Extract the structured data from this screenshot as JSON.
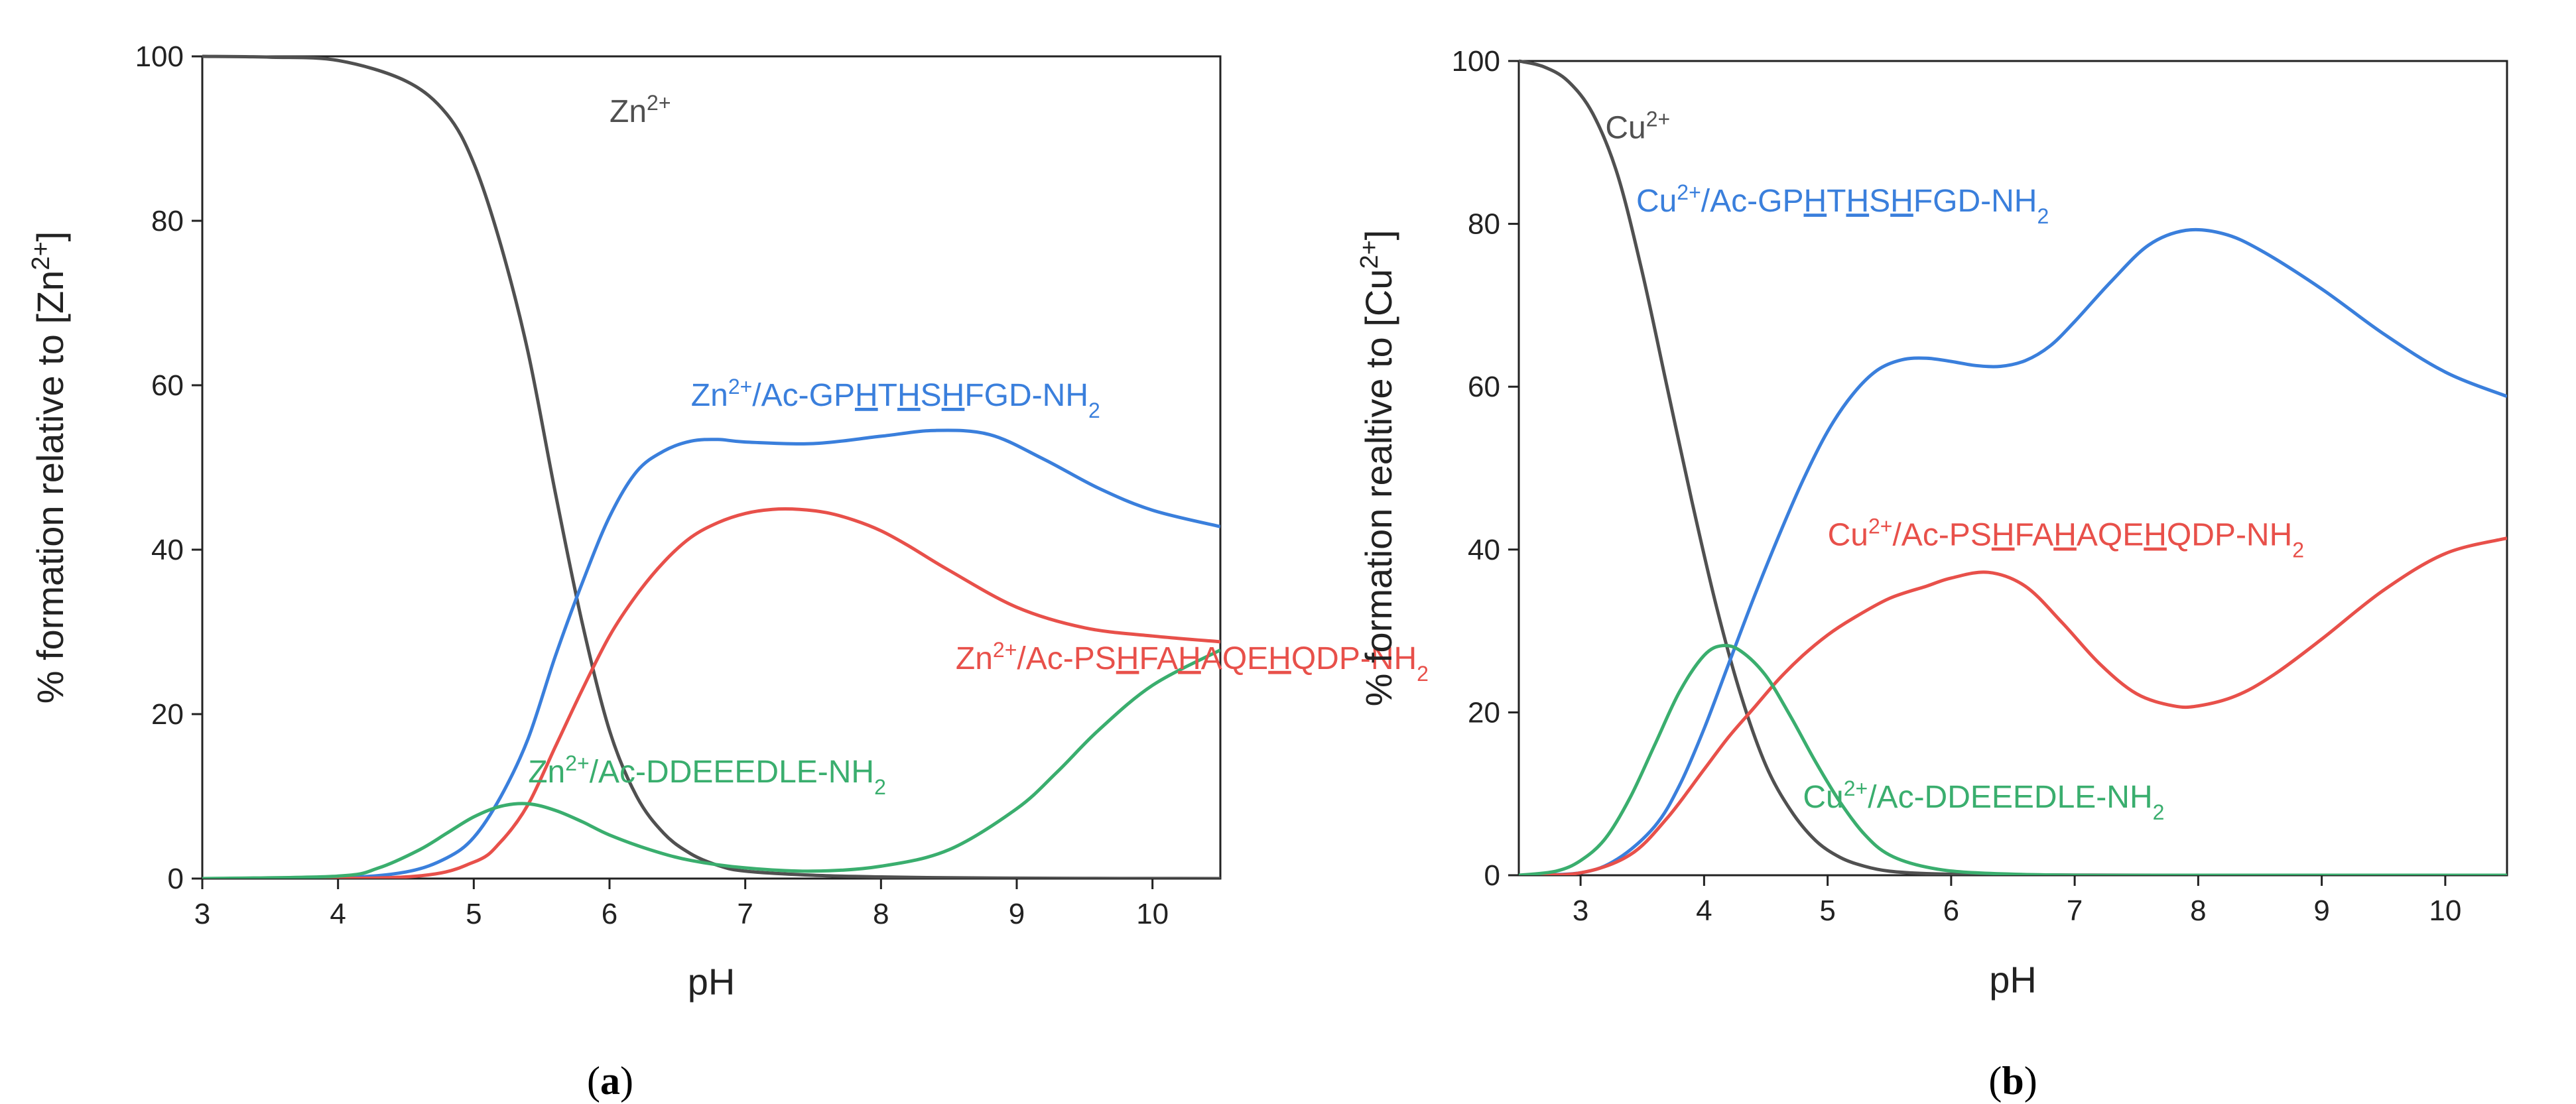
{
  "chart_data": [
    {
      "panel": "a",
      "panel_label": "(a)",
      "type": "line",
      "xlabel": "pH",
      "ylabel_prefix": "% formation relative to [Zn",
      "ylabel_sup": "2+",
      "ylabel_suffix": "]",
      "xlim": [
        3,
        10.5
      ],
      "ylim": [
        0,
        100
      ],
      "xticks": [
        3,
        4,
        5,
        6,
        7,
        8,
        9,
        10
      ],
      "yticks": [
        0,
        20,
        40,
        60,
        80,
        100
      ],
      "series": [
        {
          "name": "Zn2+",
          "color": "#505050",
          "label_parts": [
            {
              "t": "Zn"
            },
            {
              "t": "2+",
              "sup": true
            }
          ],
          "label_anchor": [
            6.0,
            92
          ],
          "x": [
            3,
            3.5,
            4,
            4.5,
            4.8,
            5,
            5.2,
            5.4,
            5.6,
            5.8,
            6,
            6.2,
            6.4,
            6.6,
            6.8,
            7,
            7.5,
            8,
            8.5,
            9,
            9.5,
            10,
            10.5
          ],
          "y": [
            100,
            99.9,
            99.5,
            97,
            93,
            87,
            77,
            64,
            47,
            31,
            18,
            10,
            5.5,
            3,
            1.6,
            0.9,
            0.4,
            0.2,
            0.1,
            0.05,
            0.02,
            0.01,
            0
          ]
        },
        {
          "name": "Zn2+/Ac-GPHTHSHFGD-NH2",
          "color": "#3a7fdc",
          "label_parts": [
            {
              "t": "Zn"
            },
            {
              "t": "2+",
              "sup": true
            },
            {
              "t": "/Ac-GP"
            },
            {
              "t": "H",
              "u": true
            },
            {
              "t": "T"
            },
            {
              "t": "H",
              "u": true
            },
            {
              "t": "S"
            },
            {
              "t": "H",
              "u": true
            },
            {
              "t": "FGD-NH"
            },
            {
              "t": "2",
              "sub": true
            }
          ],
          "label_anchor": [
            6.6,
            57.5
          ],
          "x": [
            3,
            4,
            4.5,
            4.8,
            5,
            5.2,
            5.4,
            5.6,
            5.8,
            6,
            6.2,
            6.4,
            6.6,
            6.8,
            7,
            7.5,
            8,
            8.4,
            8.8,
            9.2,
            9.6,
            10,
            10.5
          ],
          "y": [
            0,
            0.1,
            0.8,
            2.5,
            5,
            10,
            17,
            27,
            36,
            44,
            49.5,
            52,
            53.2,
            53.4,
            53.1,
            52.9,
            53.8,
            54.5,
            54,
            51,
            47.5,
            44.8,
            42.8
          ]
        },
        {
          "name": "Zn2+/Ac-PSHFAHAQEHQDP-NH2",
          "color": "#e8504a",
          "label_parts": [
            {
              "t": "Zn"
            },
            {
              "t": "2+",
              "sup": true
            },
            {
              "t": "/Ac-PS"
            },
            {
              "t": "H",
              "u": true
            },
            {
              "t": "FA"
            },
            {
              "t": "H",
              "u": true
            },
            {
              "t": "AQE"
            },
            {
              "t": "H",
              "u": true
            },
            {
              "t": "QDP-NH"
            },
            {
              "t": "2",
              "sub": true
            }
          ],
          "label_anchor": [
            8.55,
            25.5
          ],
          "x": [
            3,
            4.5,
            5,
            5.2,
            5.4,
            5.6,
            5.8,
            6,
            6.2,
            6.4,
            6.6,
            6.8,
            7,
            7.2,
            7.4,
            7.6,
            7.8,
            8,
            8.2,
            8.5,
            9,
            9.5,
            10,
            10.5
          ],
          "y": [
            0,
            0.2,
            2,
            4.5,
            9,
            16,
            23,
            29.5,
            34.5,
            38.5,
            41.5,
            43.3,
            44.4,
            44.9,
            44.9,
            44.5,
            43.6,
            42.3,
            40.5,
            37.5,
            33,
            30.5,
            29.5,
            28.8
          ]
        },
        {
          "name": "Zn2+/Ac-DDEEEDLE-NH2",
          "color": "#3aae6e",
          "label_parts": [
            {
              "t": "Zn"
            },
            {
              "t": "2+",
              "sup": true
            },
            {
              "t": "/Ac-DDEEEDLE-NH"
            },
            {
              "t": "2",
              "sub": true
            }
          ],
          "label_anchor": [
            5.4,
            11.7
          ],
          "x": [
            3,
            4,
            4.3,
            4.6,
            4.8,
            5,
            5.2,
            5.4,
            5.6,
            5.8,
            6,
            6.3,
            6.6,
            7,
            7.5,
            8,
            8.5,
            9,
            9.3,
            9.6,
            10,
            10.5
          ],
          "y": [
            0,
            0.3,
            1.3,
            3.5,
            5.5,
            7.5,
            8.8,
            9.1,
            8.3,
            6.9,
            5.3,
            3.5,
            2.2,
            1.3,
            0.9,
            1.5,
            3.5,
            8.5,
            13,
            18,
            23.5,
            27.8
          ]
        }
      ]
    },
    {
      "panel": "b",
      "panel_label": "(b)",
      "type": "line",
      "xlabel": "pH",
      "ylabel_prefix": "% formation realtive to [Cu",
      "ylabel_sup": "2+",
      "ylabel_suffix": "]",
      "xlim": [
        2.5,
        10.5
      ],
      "ylim": [
        0,
        100
      ],
      "xticks": [
        3,
        4,
        5,
        6,
        7,
        8,
        9,
        10
      ],
      "yticks": [
        0,
        20,
        40,
        60,
        80,
        100
      ],
      "series": [
        {
          "name": "Cu2+",
          "color": "#505050",
          "label_parts": [
            {
              "t": "Cu"
            },
            {
              "t": "2+",
              "sup": true
            }
          ],
          "label_anchor": [
            3.2,
            90.5
          ],
          "x": [
            2.5,
            2.7,
            2.9,
            3.1,
            3.3,
            3.5,
            3.7,
            3.9,
            4.1,
            4.3,
            4.5,
            4.7,
            4.9,
            5.1,
            5.3,
            5.5,
            5.8,
            6.2,
            7,
            8,
            9,
            10.5
          ],
          "y": [
            100,
            99.3,
            97.5,
            93.5,
            86,
            74,
            60,
            46,
            33,
            22,
            13.5,
            8,
            4.3,
            2.2,
            1.1,
            0.5,
            0.2,
            0.08,
            0.02,
            0,
            0,
            0
          ]
        },
        {
          "name": "Cu2+/Ac-GPHTHSHFGD-NH2",
          "color": "#3a7fdc",
          "label_parts": [
            {
              "t": "Cu"
            },
            {
              "t": "2+",
              "sup": true
            },
            {
              "t": "/Ac-GP"
            },
            {
              "t": "H",
              "u": true
            },
            {
              "t": "T"
            },
            {
              "t": "H",
              "u": true
            },
            {
              "t": "S"
            },
            {
              "t": "H",
              "u": true
            },
            {
              "t": "FGD-NH"
            },
            {
              "t": "2",
              "sub": true
            }
          ],
          "label_anchor": [
            3.45,
            81.5
          ],
          "x": [
            2.5,
            3,
            3.3,
            3.6,
            3.8,
            4,
            4.2,
            4.4,
            4.6,
            4.8,
            5,
            5.2,
            5.4,
            5.6,
            5.8,
            6,
            6.2,
            6.4,
            6.6,
            6.8,
            7,
            7.3,
            7.6,
            7.9,
            8.2,
            8.5,
            9,
            9.5,
            10,
            10.5
          ],
          "y": [
            0,
            0.3,
            2,
            6,
            11,
            18,
            26,
            34,
            41.5,
            48.5,
            54.5,
            59,
            62,
            63.3,
            63.5,
            63.1,
            62.6,
            62.5,
            63.2,
            65,
            68,
            73,
            77.4,
            79.2,
            78.8,
            76.8,
            72,
            66.5,
            61.8,
            58.8
          ]
        },
        {
          "name": "Cu2+/Ac-PSHFAHAQEHQDP-NH2",
          "color": "#e8504a",
          "label_parts": [
            {
              "t": "Cu"
            },
            {
              "t": "2+",
              "sup": true
            },
            {
              "t": "/Ac-PS"
            },
            {
              "t": "H",
              "u": true
            },
            {
              "t": "FA"
            },
            {
              "t": "H",
              "u": true
            },
            {
              "t": "AQE"
            },
            {
              "t": "H",
              "u": true
            },
            {
              "t": "QDP-NH"
            },
            {
              "t": "2",
              "sub": true
            }
          ],
          "label_anchor": [
            5.0,
            40.5
          ],
          "x": [
            2.5,
            3,
            3.4,
            3.7,
            4,
            4.2,
            4.4,
            4.6,
            4.8,
            5,
            5.2,
            5.5,
            5.8,
            6,
            6.3,
            6.6,
            6.9,
            7.2,
            7.5,
            7.8,
            8,
            8.3,
            8.6,
            9,
            9.5,
            10,
            10.5
          ],
          "y": [
            0,
            0.3,
            2.5,
            7,
            13,
            17,
            20.5,
            24,
            27,
            29.5,
            31.5,
            34,
            35.5,
            36.5,
            37.2,
            35.5,
            31,
            26,
            22.3,
            20.8,
            20.8,
            22,
            24.5,
            29,
            35,
            39.5,
            41.4
          ]
        },
        {
          "name": "Cu2+/Ac-DDEEEDLE-NH2",
          "color": "#3aae6e",
          "label_parts": [
            {
              "t": "Cu"
            },
            {
              "t": "2+",
              "sup": true
            },
            {
              "t": "/Ac-DDEEEDLE-NH"
            },
            {
              "t": "2",
              "sub": true
            }
          ],
          "label_anchor": [
            4.8,
            8.3
          ],
          "x": [
            2.5,
            2.8,
            3.0,
            3.2,
            3.4,
            3.6,
            3.8,
            4.0,
            4.15,
            4.3,
            4.5,
            4.7,
            4.9,
            5.1,
            5.3,
            5.5,
            5.8,
            6.2,
            7,
            8,
            10.5
          ],
          "y": [
            0,
            0.5,
            1.8,
            4.5,
            9.5,
            16,
            22.5,
            27,
            28.2,
            27.5,
            24.5,
            19.5,
            14,
            9,
            5,
            2.5,
            1,
            0.3,
            0,
            0,
            0
          ]
        }
      ]
    }
  ]
}
